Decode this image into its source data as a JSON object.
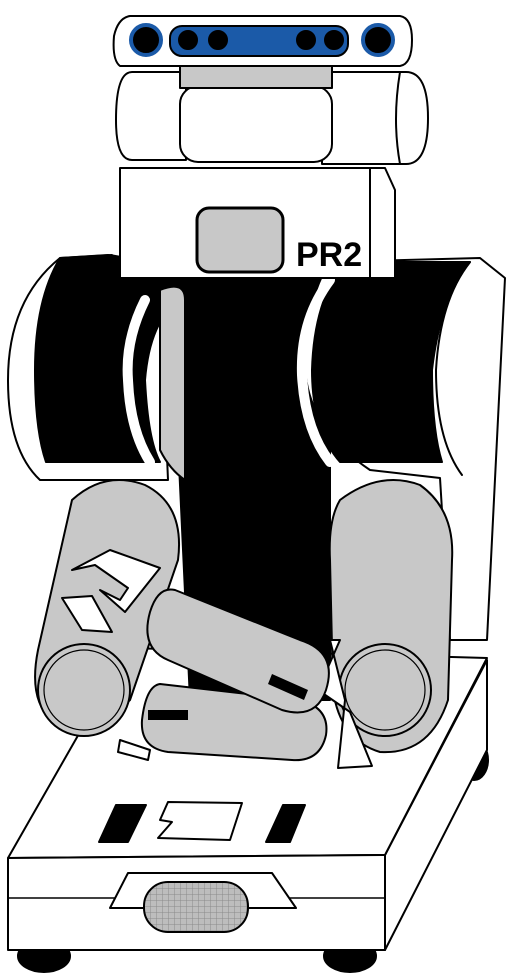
{
  "figure": {
    "model_label": "PR2"
  },
  "colors": {
    "outline": "#000000",
    "body_white": "#ffffff",
    "shell_black": "#000000",
    "arm_gray": "#c8c8c8",
    "sensor_blue": "#1b5aa8",
    "vent_gray": "#bdbdbd"
  }
}
